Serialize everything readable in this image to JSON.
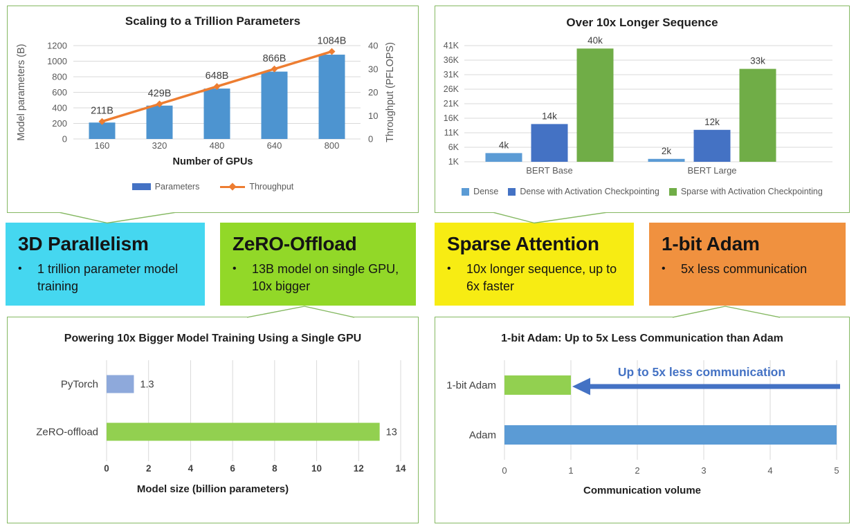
{
  "colors": {
    "frame": "#84B861",
    "grid": "#D9D9D9",
    "tick": "#595959",
    "data_label": "#404040",
    "title": "#1F1F1F"
  },
  "chart_data": [
    {
      "type": "bar",
      "title": "Scaling to a Trillion Parameters",
      "categories": [
        "160",
        "320",
        "480",
        "640",
        "800"
      ],
      "xlabel": "Number of GPUs",
      "left_axis": {
        "label": "Model parameters (B)",
        "lim": [
          0,
          1200
        ],
        "ticks": [
          "0",
          "200",
          "400",
          "600",
          "800",
          "1000",
          "1200"
        ]
      },
      "right_axis": {
        "label": "Throughput  (PFLOPS)",
        "lim": [
          0,
          40
        ],
        "ticks": [
          "0",
          "10",
          "20",
          "30",
          "40"
        ]
      },
      "series": [
        {
          "name": "Parameters",
          "kind": "bar",
          "axis": "left",
          "values": [
            211,
            429,
            648,
            866,
            1084
          ],
          "labels": [
            "211B",
            "429B",
            "648B",
            "866B",
            "1084B"
          ],
          "color": "#4D94D0"
        },
        {
          "name": "Throughput",
          "kind": "line",
          "axis": "right",
          "values": [
            7.5,
            15,
            22.5,
            30,
            37.5
          ],
          "color": "#ED7D31",
          "note": "unlabeled - estimated from plot"
        }
      ],
      "legend": [
        {
          "label": "Parameters",
          "swatch": "bar",
          "color": "#4472C4"
        },
        {
          "label": "Throughput",
          "swatch": "line",
          "color": "#ED7D31"
        }
      ],
      "grid": true,
      "legend_position": "bottom"
    },
    {
      "type": "bar",
      "title": "Over 10x Longer Sequence",
      "categories": [
        "BERT Base",
        "BERT Large"
      ],
      "y_axis": {
        "lim": [
          1000,
          41000
        ],
        "ticks": [
          "1K",
          "6K",
          "11K",
          "16K",
          "21K",
          "26K",
          "31K",
          "36K",
          "41K"
        ]
      },
      "series": [
        {
          "name": "Dense",
          "values": [
            4000,
            2000
          ],
          "labels": [
            "4k",
            "2k"
          ],
          "color": "#5B9BD5"
        },
        {
          "name": "Dense with Activation Checkpointing",
          "values": [
            14000,
            12000
          ],
          "labels": [
            "14k",
            "12k"
          ],
          "color": "#4472C4"
        },
        {
          "name": "Sparse with Activation Checkpointing",
          "values": [
            40000,
            33000
          ],
          "labels": [
            "40k",
            "33k"
          ],
          "color": "#70AD47"
        }
      ],
      "legend": [
        {
          "label": "Dense",
          "swatch": "square",
          "color": "#5B9BD5"
        },
        {
          "label": "Dense with Activation Checkpointing",
          "swatch": "square",
          "color": "#4472C4"
        },
        {
          "label": "Sparse with Activation Checkpointing",
          "swatch": "square",
          "color": "#70AD47"
        }
      ],
      "grid": true,
      "legend_position": "bottom"
    },
    {
      "type": "bar-horizontal",
      "title": "Powering 10x Bigger Model Training Using a Single GPU",
      "categories": [
        "PyTorch",
        "ZeRO-offload"
      ],
      "values": [
        1.3,
        13
      ],
      "value_labels": [
        "1.3",
        "13"
      ],
      "bar_colors": [
        "#8EA9DB",
        "#92D050"
      ],
      "xlabel": "Model size (billion parameters)",
      "x_axis": {
        "lim": [
          0,
          14
        ],
        "ticks": [
          "0",
          "2",
          "4",
          "6",
          "8",
          "10",
          "12",
          "14"
        ]
      },
      "grid": true
    },
    {
      "type": "bar-horizontal",
      "title": "1-bit Adam: Up to 5x Less Communication than Adam",
      "categories": [
        "1-bit Adam",
        "Adam"
      ],
      "values": [
        1,
        5
      ],
      "value_labels": [
        "",
        ""
      ],
      "bar_colors": [
        "#92D050",
        "#5B9BD5"
      ],
      "xlabel": "Communication volume",
      "x_axis": {
        "lim": [
          0,
          5
        ],
        "ticks": [
          "0",
          "1",
          "2",
          "3",
          "4",
          "5"
        ]
      },
      "annotation": {
        "text": "Up to 5x less communication",
        "color": "#4472C4"
      },
      "grid": true
    }
  ],
  "callouts": [
    {
      "marker": "•",
      "title": "3D Parallelism",
      "bullet": "1 trillion parameter model training",
      "bg": "#45D7F0"
    },
    {
      "marker": "•",
      "title": "ZeRO-Offload",
      "bullet": "13B model on single GPU, 10x bigger",
      "bg": "#92D828"
    },
    {
      "marker": "•",
      "title": "Sparse Attention",
      "bullet": "10x longer sequence, up to 6x faster",
      "bg": "#F7EC13"
    },
    {
      "marker": "•",
      "title": "1-bit Adam",
      "bullet": "5x less communication",
      "bg": "#F0913F"
    }
  ]
}
